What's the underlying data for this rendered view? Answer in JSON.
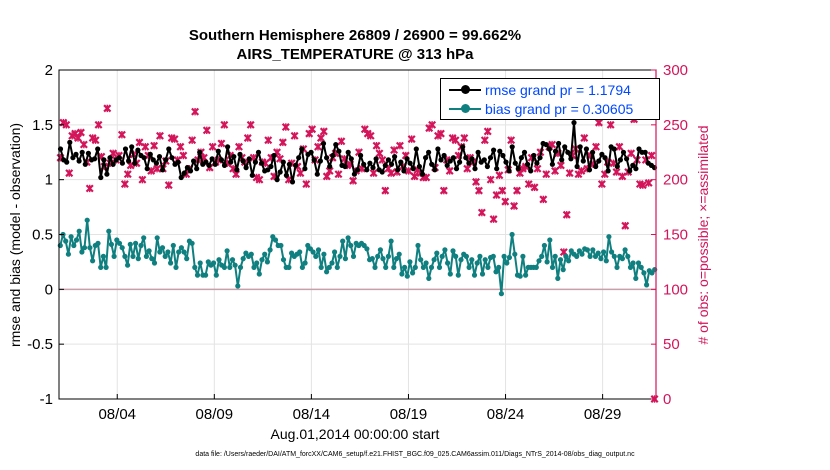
{
  "chart_data": {
    "type": "line",
    "title_line1": "Southern Hemisphere 26809 / 26900 = 99.662%",
    "title_line2": "AIRS_TEMPERATURE @ 313 hPa",
    "xlabel": "Aug.01,2014 00:00:00 start",
    "ylabel_left": "rmse and bias (model - observation)",
    "ylabel_right": "# of obs: o=possible; ×=assimilated",
    "footnote": "data file: /Users/raeder/DAI/ATM_forcXX/CAM6_setup/f.e21.FHIST_BGC.f09_025.CAM6assim.011/Diags_NTrS_2014-08/obs_diag_output.nc",
    "x_tick_labels": [
      "08/04",
      "08/09",
      "08/14",
      "08/19",
      "08/24",
      "08/29"
    ],
    "x_tick_days": [
      4,
      9,
      14,
      19,
      24,
      29
    ],
    "xlim_days": [
      1,
      31.75
    ],
    "ylim_left": [
      -1,
      2
    ],
    "yticks_left": [
      "-1",
      "-0.5",
      "0",
      "0.5",
      "1",
      "1.5",
      "2"
    ],
    "ylim_right": [
      0,
      300
    ],
    "yticks_right": [
      "0",
      "50",
      "100",
      "150",
      "200",
      "250",
      "300"
    ],
    "grid": true,
    "legend_position": "top-right",
    "colors": {
      "rmse": "#000000",
      "bias": "#0f7f7f",
      "obs": "#d3155a",
      "zero_line": "#c8a0a8",
      "right_axis": "#d3155a",
      "legend_text": "#0047ff"
    },
    "series": [
      {
        "name": "rmse grand pr = 1.1794",
        "key": "rmse",
        "values": [
          1.28,
          1.18,
          1.16,
          1.34,
          1.2,
          1.23,
          1.17,
          1.25,
          1.14,
          1.24,
          1.18,
          1.19,
          1.28,
          1.02,
          1.18,
          1.05,
          1.2,
          1.14,
          1.18,
          1.2,
          1.15,
          1.28,
          1.17,
          1.3,
          1.15,
          1.27,
          1.22,
          1.2,
          1.1,
          1.23,
          1.18,
          1.15,
          1.21,
          1.09,
          1.18,
          1.28,
          1.2,
          1.14,
          1.16,
          1.02,
          1.06,
          1.11,
          1.08,
          1.17,
          1.1,
          1.25,
          1.14,
          1.16,
          1.13,
          1.19,
          1.14,
          1.26,
          1.18,
          1.13,
          1.3,
          1.16,
          1.21,
          1.09,
          1.23,
          1.17,
          1.11,
          1.19,
          1.04,
          1.16,
          1.25,
          1.15,
          1.08,
          1.09,
          1.12,
          1.22,
          1.0,
          1.07,
          1.16,
          1.04,
          1.14,
          0.98,
          1.13,
          1.2,
          1.28,
          1.1,
          1.23,
          1.25,
          1.18,
          1.05,
          1.17,
          1.33,
          1.2,
          1.12,
          1.22,
          1.32,
          1.26,
          1.13,
          1.12,
          1.25,
          1.19,
          1.05,
          1.09,
          1.22,
          1.14,
          1.09,
          1.15,
          1.11,
          1.19,
          1.09,
          1.07,
          1.13,
          1.18,
          1.14,
          1.21,
          1.09,
          1.16,
          1.08,
          1.19,
          1.15,
          1.1,
          1.28,
          1.12,
          1.05,
          1.2,
          1.25,
          1.14,
          1.09,
          1.28,
          1.18,
          1.22,
          1.13,
          1.17,
          1.2,
          1.1,
          1.16,
          1.3,
          1.2,
          1.15,
          1.19,
          1.1,
          1.25,
          1.16,
          1.18,
          1.12,
          1.2,
          1.27,
          1.1,
          1.26,
          1.22,
          1.16,
          1.08,
          1.3,
          1.15,
          1.1,
          1.2,
          1.25,
          1.14,
          1.08,
          1.22,
          1.15,
          1.2,
          1.33,
          1.32,
          1.28,
          1.14,
          1.26,
          1.33,
          1.18,
          1.3,
          1.25,
          1.19,
          1.52,
          1.12,
          1.3,
          1.17,
          1.28,
          1.09,
          1.25,
          1.12,
          1.17,
          1.23,
          1.2,
          1.08,
          1.3,
          1.28,
          1.12,
          1.18,
          1.25,
          1.19,
          1.08,
          1.13,
          1.1,
          1.28,
          1.25,
          1.25,
          1.15,
          1.13,
          1.11
        ]
      },
      {
        "name": "bias grand pr = 0.30605",
        "key": "bias",
        "values": [
          0.4,
          0.5,
          0.44,
          0.32,
          0.48,
          0.4,
          0.45,
          0.53,
          0.34,
          0.38,
          0.63,
          0.38,
          0.26,
          0.4,
          0.42,
          0.2,
          0.3,
          0.2,
          0.53,
          0.41,
          0.3,
          0.45,
          0.42,
          0.38,
          0.3,
          0.22,
          0.41,
          0.3,
          0.42,
          0.28,
          0.4,
          0.47,
          0.3,
          0.35,
          0.28,
          0.24,
          0.47,
          0.34,
          0.38,
          0.3,
          0.34,
          0.24,
          0.4,
          0.2,
          0.34,
          0.38,
          0.34,
          0.28,
          0.44,
          0.42,
          0.2,
          0.13,
          0.24,
          0.13,
          0.13,
          0.25,
          0.22,
          0.24,
          0.13,
          0.27,
          0.22,
          0.2,
          0.35,
          0.2,
          0.27,
          0.22,
          0.03,
          0.2,
          0.28,
          0.33,
          0.3,
          0.32,
          0.2,
          0.24,
          0.14,
          0.27,
          0.32,
          0.25,
          0.36,
          0.48,
          0.45,
          0.4,
          0.4,
          0.27,
          0.2,
          0.2,
          0.33,
          0.3,
          0.32,
          0.34,
          0.2,
          0.24,
          0.4,
          0.37,
          0.34,
          0.3,
          0.36,
          0.2,
          0.32,
          0.16,
          0.2,
          0.24,
          0.34,
          0.2,
          0.3,
          0.44,
          0.28,
          0.47,
          0.4,
          0.3,
          0.42,
          0.4,
          0.42,
          0.4,
          0.37,
          0.27,
          0.28,
          0.2,
          0.3,
          0.36,
          0.28,
          0.2,
          0.3,
          0.44,
          0.2,
          0.28,
          0.32,
          0.14,
          0.2,
          0.12,
          0.25,
          0.15,
          0.2,
          0.4,
          0.27,
          0.2,
          0.24,
          0.1,
          0.2,
          0.27,
          0.33,
          0.2,
          0.3,
          0.36,
          0.24,
          0.14,
          0.35,
          0.3,
          0.13,
          0.27,
          0.32,
          0.3,
          0.2,
          0.27,
          0.13,
          0.24,
          0.3,
          0.14,
          0.27,
          0.2,
          0.29,
          0.3,
          0.16,
          0.2,
          -0.04,
          0.3,
          0.24,
          0.29,
          0.5,
          0.32,
          0.13,
          0.12,
          0.3,
          0.13,
          0.2,
          0.2,
          0.2,
          0.2,
          0.26,
          0.3,
          0.4,
          0.25,
          0.45,
          0.2,
          0.3,
          0.1,
          0.27,
          0.18,
          0.3,
          0.26,
          0.35,
          0.32,
          0.3,
          0.35,
          0.32,
          0.37,
          0.36,
          0.3,
          0.36,
          0.3,
          0.33,
          0.28,
          0.34,
          0.26,
          0.48,
          0.34,
          0.3,
          0.2,
          0.3,
          0.28,
          0.36,
          0.3,
          0.2,
          0.24,
          0.1,
          0.24,
          0.2,
          0.15,
          0.04,
          0.17,
          0.15,
          0.18
        ]
      },
      {
        "name": "# of obs assimilated",
        "key": "obs",
        "values": [
          220,
          252,
          250,
          206,
          240,
          242,
          238,
          243,
          232,
          216,
          192,
          238,
          236,
          250,
          221,
          212,
          265,
          215,
          224,
          218,
          222,
          241,
          196,
          205,
          213,
          223,
          215,
          234,
          200,
          230,
          222,
          208,
          231,
          210,
          240,
          210,
          217,
          195,
          238,
          237,
          218,
          230,
          222,
          205,
          210,
          236,
          262,
          218,
          225,
          220,
          245,
          211,
          230,
          216,
          218,
          233,
          250,
          215,
          222,
          210,
          205,
          230,
          220,
          216,
          238,
          250,
          220,
          202,
          200,
          216,
          215,
          236,
          220,
          203,
          225,
          219,
          234,
          248,
          200,
          215,
          240,
          212,
          206,
          228,
          196,
          242,
          246,
          218,
          230,
          238,
          244,
          203,
          208,
          220,
          224,
          205,
          235,
          219,
          213,
          214,
          199,
          208,
          225,
          210,
          246,
          242,
          240,
          206,
          231,
          224,
          218,
          190,
          210,
          206,
          227,
          207,
          231,
          212,
          222,
          208,
          237,
          203,
          209,
          206,
          202,
          202,
          247,
          250,
          211,
          240,
          242,
          190,
          218,
          208,
          238,
          236,
          222,
          230,
          238,
          210,
          220,
          216,
          198,
          190,
          170,
          236,
          244,
          200,
          164,
          186,
          204,
          190,
          180,
          209,
          236,
          176,
          190,
          206,
          210,
          212,
          196,
          220,
          193,
          210,
          225,
          182,
          205,
          230,
          232,
          208,
          224,
          213,
          134,
          168,
          206,
          222,
          228,
          205,
          208,
          238,
          210,
          222,
          214,
          230,
          252,
          196,
          205,
          216,
          250,
          215,
          207,
          230,
          203,
          158,
          207,
          224,
          255,
          218,
          196,
          195,
          218,
          197,
          222,
          0
        ]
      }
    ]
  }
}
